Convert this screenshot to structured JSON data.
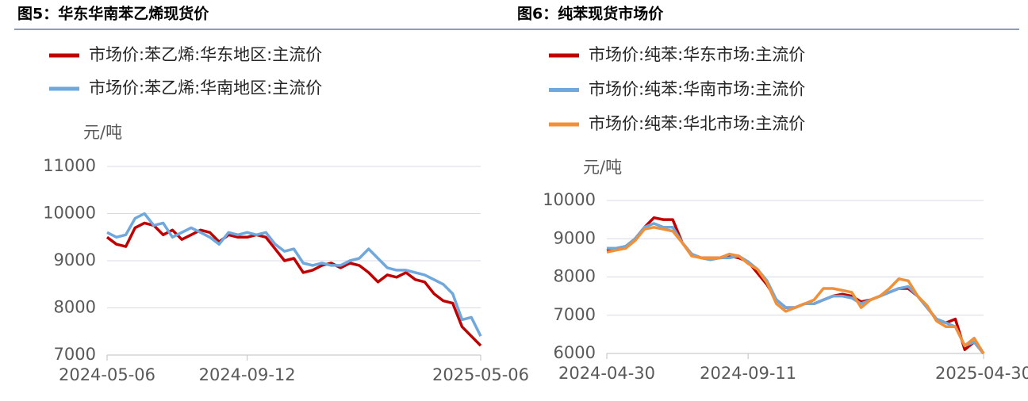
{
  "chart_data": [
    {
      "type": "line",
      "title": "图5：华东华南苯乙烯现货价",
      "y_label": "元/吨",
      "categories": [
        "2024-05-06",
        null,
        null,
        null,
        null,
        null,
        null,
        null,
        null,
        null,
        null,
        null,
        null,
        null,
        null,
        "2024-09-12",
        null,
        null,
        null,
        null,
        null,
        null,
        null,
        null,
        null,
        null,
        null,
        null,
        null,
        null,
        null,
        null,
        null,
        null,
        null,
        null,
        null,
        null,
        null,
        null,
        "2025-05-06"
      ],
      "series": [
        {
          "name": "市场价:苯乙烯:华东地区:主流价",
          "color": "#c00000",
          "values": [
            9500,
            9350,
            9300,
            9700,
            9800,
            9750,
            9550,
            9650,
            9450,
            9550,
            9650,
            9600,
            9400,
            9550,
            9500,
            9500,
            9550,
            9500,
            9250,
            9000,
            9050,
            8750,
            8800,
            8900,
            8950,
            8850,
            8950,
            8900,
            8750,
            8550,
            8700,
            8650,
            8750,
            8600,
            8550,
            8300,
            8150,
            8100,
            7600,
            7400,
            7200
          ]
        },
        {
          "name": "市场价:苯乙烯:华南地区:主流价",
          "color": "#6fa8dc",
          "values": [
            9600,
            9500,
            9550,
            9900,
            10000,
            9750,
            9800,
            9500,
            9600,
            9700,
            9600,
            9500,
            9350,
            9600,
            9550,
            9600,
            9550,
            9600,
            9350,
            9200,
            9250,
            8950,
            8900,
            8950,
            8900,
            8900,
            9000,
            9050,
            9250,
            9050,
            8850,
            8800,
            8800,
            8750,
            8700,
            8600,
            8500,
            8300,
            7750,
            7800,
            7400
          ]
        }
      ],
      "ylim": [
        7000,
        11000
      ],
      "yticks": [
        7000,
        8000,
        9000,
        10000,
        11000
      ],
      "grid": true
    },
    {
      "type": "line",
      "title": "图6：纯苯现货市场价",
      "y_label": "元/吨",
      "categories": [
        "2024-04-30",
        null,
        null,
        null,
        null,
        null,
        null,
        null,
        null,
        null,
        null,
        null,
        null,
        null,
        null,
        "2024-09-11",
        null,
        null,
        null,
        null,
        null,
        null,
        null,
        null,
        null,
        null,
        null,
        null,
        null,
        null,
        null,
        null,
        null,
        null,
        null,
        null,
        null,
        null,
        null,
        null,
        "2025-04-30"
      ],
      "series": [
        {
          "name": "市场价:纯苯:华东市场:主流价",
          "color": "#c00000",
          "values": [
            8700,
            8750,
            8800,
            9000,
            9300,
            9550,
            9500,
            9500,
            8900,
            8600,
            8500,
            8500,
            8500,
            8550,
            8500,
            8400,
            8100,
            7800,
            7400,
            7200,
            7200,
            7300,
            7300,
            7400,
            7500,
            7550,
            7500,
            7350,
            7400,
            7500,
            7600,
            7700,
            7700,
            7500,
            7200,
            6900,
            6800,
            6900,
            6100,
            6300,
            6000
          ]
        },
        {
          "name": "市场价:纯苯:华南市场:主流价",
          "color": "#6fa8dc",
          "values": [
            8750,
            8750,
            8800,
            9000,
            9300,
            9400,
            9300,
            9300,
            8900,
            8600,
            8500,
            8450,
            8500,
            8500,
            8550,
            8400,
            8200,
            7900,
            7400,
            7200,
            7200,
            7300,
            7300,
            7400,
            7500,
            7500,
            7450,
            7300,
            7400,
            7500,
            7600,
            7700,
            7750,
            7500,
            7200,
            6900,
            6800,
            6700,
            6200,
            6300,
            6000
          ]
        },
        {
          "name": "市场价:纯苯:华北市场:主流价",
          "color": "#f0913a",
          "values": [
            8650,
            8700,
            8750,
            8950,
            9250,
            9300,
            9250,
            9200,
            8900,
            8550,
            8500,
            8500,
            8500,
            8600,
            8550,
            8350,
            8200,
            7850,
            7300,
            7100,
            7200,
            7300,
            7400,
            7700,
            7700,
            7650,
            7600,
            7200,
            7400,
            7500,
            7700,
            7950,
            7900,
            7500,
            7250,
            6850,
            6700,
            6700,
            6200,
            6400,
            6000
          ]
        }
      ],
      "ylim": [
        6000,
        10000
      ],
      "yticks": [
        6000,
        7000,
        8000,
        9000,
        10000
      ],
      "grid": true
    }
  ]
}
